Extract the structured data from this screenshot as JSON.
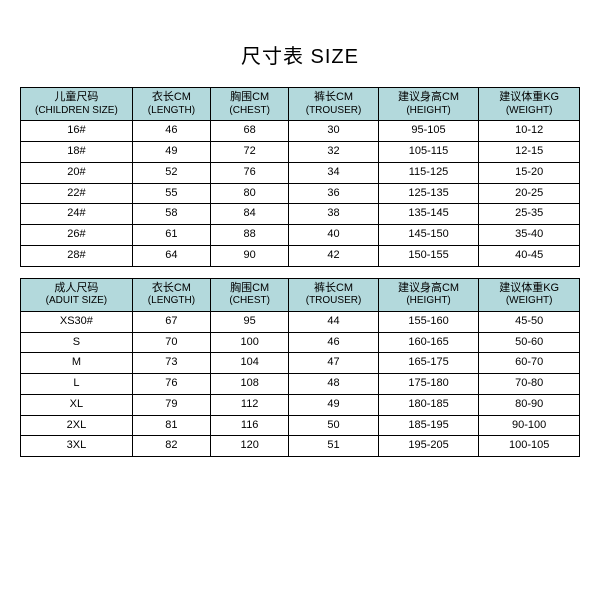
{
  "title": "尺寸表 SIZE",
  "header_bg": "#b3d9dc",
  "border_color": "#000000",
  "columns": [
    {
      "cn": "儿童尺码",
      "en": "(CHILDREN SIZE)"
    },
    {
      "cn": "衣长CM",
      "en": "(LENGTH)"
    },
    {
      "cn": "胸围CM",
      "en": "(CHEST)"
    },
    {
      "cn": "裤长CM",
      "en": "(TROUSER)"
    },
    {
      "cn": "建议身高CM",
      "en": "(HEIGHT)"
    },
    {
      "cn": "建议体重KG",
      "en": "(WEIGHT)"
    }
  ],
  "children_rows": [
    [
      "16#",
      "46",
      "68",
      "30",
      "95-105",
      "10-12"
    ],
    [
      "18#",
      "49",
      "72",
      "32",
      "105-115",
      "12-15"
    ],
    [
      "20#",
      "52",
      "76",
      "34",
      "115-125",
      "15-20"
    ],
    [
      "22#",
      "55",
      "80",
      "36",
      "125-135",
      "20-25"
    ],
    [
      "24#",
      "58",
      "84",
      "38",
      "135-145",
      "25-35"
    ],
    [
      "26#",
      "61",
      "88",
      "40",
      "145-150",
      "35-40"
    ],
    [
      "28#",
      "64",
      "90",
      "42",
      "150-155",
      "40-45"
    ]
  ],
  "adult_columns": [
    {
      "cn": "成人尺码",
      "en": "(ADUIT SIZE)"
    },
    {
      "cn": "衣长CM",
      "en": "(LENGTH)"
    },
    {
      "cn": "胸围CM",
      "en": "(CHEST)"
    },
    {
      "cn": "裤长CM",
      "en": "(TROUSER)"
    },
    {
      "cn": "建议身高CM",
      "en": "(HEIGHT)"
    },
    {
      "cn": "建议体重KG",
      "en": "(WEIGHT)"
    }
  ],
  "adult_rows": [
    [
      "XS30#",
      "67",
      "95",
      "44",
      "155-160",
      "45-50"
    ],
    [
      "S",
      "70",
      "100",
      "46",
      "160-165",
      "50-60"
    ],
    [
      "M",
      "73",
      "104",
      "47",
      "165-175",
      "60-70"
    ],
    [
      "L",
      "76",
      "108",
      "48",
      "175-180",
      "70-80"
    ],
    [
      "XL",
      "79",
      "112",
      "49",
      "180-185",
      "80-90"
    ],
    [
      "2XL",
      "81",
      "116",
      "50",
      "185-195",
      "90-100"
    ],
    [
      "3XL",
      "82",
      "120",
      "51",
      "195-205",
      "100-105"
    ]
  ]
}
